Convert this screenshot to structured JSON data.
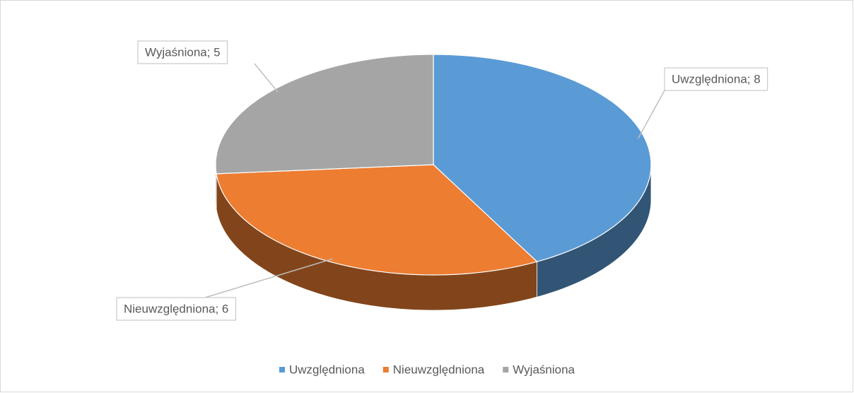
{
  "chart_data": {
    "type": "pie",
    "categories": [
      "Uwzględniona",
      "Nieuwzględniona",
      "Wyjaśniona"
    ],
    "values": [
      8,
      6,
      5
    ],
    "value_labels": [
      "Uwzględniona; 8",
      "Nieuwzględniona; 6",
      "Wyjaśniona; 5"
    ],
    "colors": [
      "#5b9bd5",
      "#ed7d31",
      "#a5a5a5"
    ],
    "legend": "bottom"
  }
}
